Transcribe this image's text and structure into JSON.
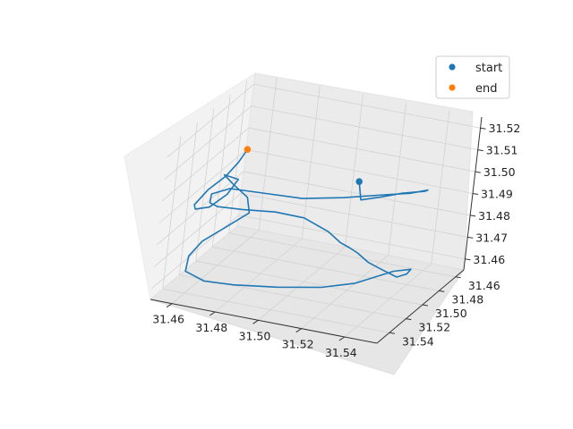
{
  "chart_data": {
    "type": "line3d",
    "title": "",
    "xlabel": "",
    "ylabel": "",
    "zlabel": "",
    "x_ticks": [
      "31.46",
      "31.48",
      "31.50",
      "31.52",
      "31.54"
    ],
    "y_ticks": [
      "31.46",
      "31.48",
      "31.50",
      "31.52",
      "31.54"
    ],
    "z_ticks": [
      "31.46",
      "31.47",
      "31.48",
      "31.49",
      "31.50",
      "31.51",
      "31.52"
    ],
    "xlim": [
      31.45,
      31.555
    ],
    "ylim": [
      31.45,
      31.555
    ],
    "zlim": [
      31.455,
      31.525
    ],
    "grid": true,
    "legend_position": "top-right",
    "series": [
      {
        "color": "#1f77b4",
        "points": [
          [
            31.535,
            31.545,
            31.522
          ],
          [
            31.535,
            31.54,
            31.512
          ],
          [
            31.54,
            31.53,
            31.511
          ],
          [
            31.545,
            31.515,
            31.509
          ],
          [
            31.55,
            31.5,
            31.506
          ],
          [
            31.548,
            31.49,
            31.503
          ],
          [
            31.54,
            31.49,
            31.5
          ],
          [
            31.53,
            31.495,
            31.499
          ],
          [
            31.515,
            31.505,
            31.498
          ],
          [
            31.5,
            31.515,
            31.498
          ],
          [
            31.485,
            31.52,
            31.499
          ],
          [
            31.47,
            31.525,
            31.5
          ],
          [
            31.462,
            31.525,
            31.496
          ],
          [
            31.46,
            31.52,
            31.49
          ],
          [
            31.462,
            31.515,
            31.487
          ],
          [
            31.47,
            31.505,
            31.484
          ],
          [
            31.48,
            31.49,
            31.48
          ],
          [
            31.49,
            31.48,
            31.476
          ],
          [
            31.5,
            31.475,
            31.47
          ],
          [
            31.505,
            31.472,
            31.465
          ],
          [
            31.508,
            31.468,
            31.462
          ],
          [
            31.51,
            31.462,
            31.458
          ],
          [
            31.513,
            31.455,
            31.452
          ],
          [
            31.518,
            31.45,
            31.448
          ],
          [
            31.525,
            31.45,
            31.446
          ],
          [
            31.53,
            31.452,
            31.449
          ],
          [
            31.533,
            31.456,
            31.453
          ],
          [
            31.53,
            31.47,
            31.456
          ],
          [
            31.52,
            31.49,
            31.455
          ],
          [
            31.51,
            31.505,
            31.456
          ],
          [
            31.495,
            31.52,
            31.458
          ],
          [
            31.48,
            31.535,
            31.461
          ],
          [
            31.47,
            31.545,
            31.464
          ],
          [
            31.462,
            31.548,
            31.468
          ],
          [
            31.46,
            31.54,
            31.472
          ],
          [
            31.462,
            31.53,
            31.476
          ],
          [
            31.468,
            31.52,
            31.48
          ],
          [
            31.475,
            31.51,
            31.485
          ],
          [
            31.47,
            31.5,
            31.488
          ],
          [
            31.462,
            31.498,
            31.492
          ],
          [
            31.46,
            31.505,
            31.498
          ],
          [
            31.47,
            31.515,
            31.501
          ],
          [
            31.468,
            31.522,
            31.496
          ],
          [
            31.46,
            31.52,
            31.488
          ],
          [
            31.452,
            31.515,
            31.484
          ],
          [
            31.448,
            31.505,
            31.482
          ],
          [
            31.45,
            31.495,
            31.486
          ],
          [
            31.455,
            31.488,
            31.491
          ],
          [
            31.458,
            31.482,
            31.496
          ],
          [
            31.46,
            31.478,
            31.501
          ]
        ]
      }
    ],
    "markers": [
      {
        "name": "start",
        "color": "#1f77b4",
        "point": [
          31.535,
          31.545,
          31.522
        ]
      },
      {
        "name": "end",
        "color": "#ff7f0e",
        "point": [
          31.46,
          31.478,
          31.501
        ]
      }
    ]
  }
}
